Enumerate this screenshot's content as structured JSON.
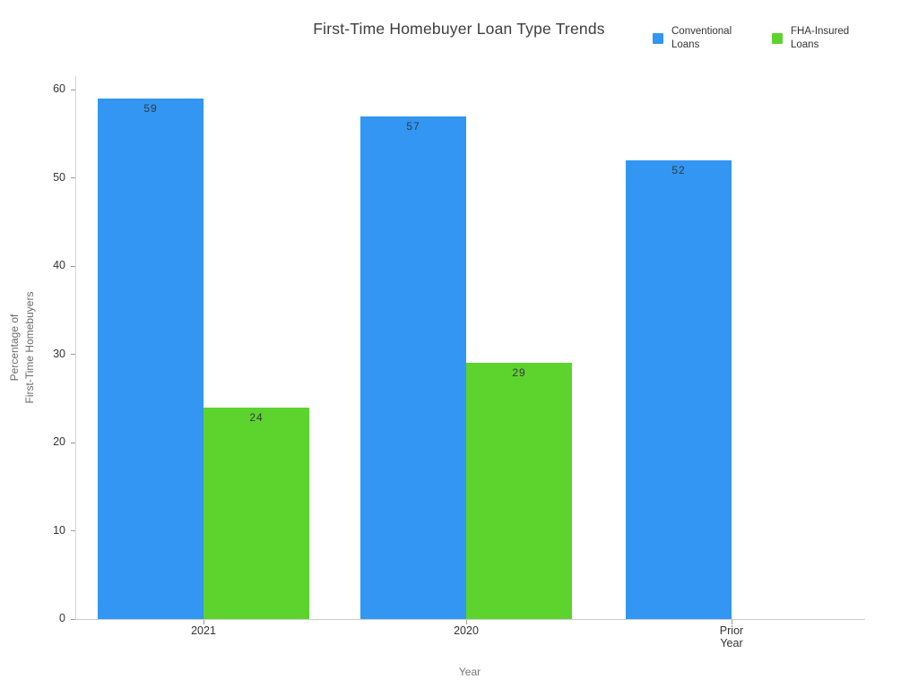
{
  "chart_data": {
    "type": "bar",
    "title": "First-Time Homebuyer Loan Type Trends",
    "xlabel": "Year",
    "ylabel": "Percentage of\nFirst-Time Homebuyers",
    "categories": [
      "2021",
      "2020",
      "Prior Year"
    ],
    "series": [
      {
        "name": "Conventional Loans",
        "color": "#3296f2",
        "values": [
          59,
          57,
          52
        ]
      },
      {
        "name": "FHA-Insured Loans",
        "color": "#5dd32e",
        "values": [
          24,
          29,
          null
        ]
      }
    ],
    "ylim": [
      0,
      60
    ],
    "yticks": [
      0,
      10,
      20,
      30,
      40,
      50,
      60
    ],
    "grid": false,
    "legend_position": "top-right",
    "bar_value_labels": true
  }
}
